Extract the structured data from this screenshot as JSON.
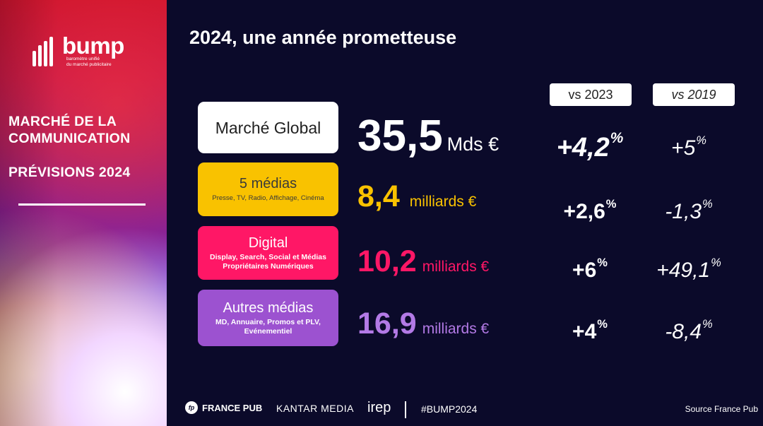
{
  "logo": {
    "word": "bump",
    "subtitle_line1": "baromètre unifié",
    "subtitle_line2": "du marché publicitaire",
    "icon": "bump-bars-icon"
  },
  "sidebar": {
    "title_line1": "MARCHÉ DE LA",
    "title_line2": "COMMUNICATION",
    "subtitle": "PRÉVISIONS 2024"
  },
  "title": "2024, une année prometteuse",
  "columns": {
    "vs2023": "vs 2023",
    "vs2019": "vs 2019"
  },
  "rows": {
    "global": {
      "name": "Marché Global",
      "value": "35,5",
      "unit": "Mds €",
      "vs2023": "+4,2",
      "vs2019": "+5"
    },
    "five": {
      "name": "5 médias",
      "desc": "Presse, TV, Radio, Affichage, Cinéma",
      "value": "8,4",
      "unit": "milliards €",
      "vs2023": "+2,6",
      "vs2019": "-1,3"
    },
    "digital": {
      "name": "Digital",
      "desc1": "Display, Search, Social et Médias",
      "desc2": "Propriétaires Numériques",
      "value": "10,2",
      "unit": "milliards €",
      "vs2023": "+6",
      "vs2019": "+49,1"
    },
    "autres": {
      "name": "Autres médias",
      "desc1": "MD, Annuaire, Promos et PLV,",
      "desc2": "Evénementiel",
      "value": "16,9",
      "unit": "milliards €",
      "vs2023": "+4",
      "vs2019": "-8,4"
    }
  },
  "pct_sign": "%",
  "footer": {
    "francepub": "FRANCE PUB",
    "francepub_icon": "fp",
    "kantar": "KANTAR MEDIA",
    "irep": "irep",
    "hashtag": "#BUMP2024",
    "source": "Source France Pub"
  },
  "colors": {
    "background": "#0b0a2a",
    "yellow": "#f9c200",
    "pink": "#ff1766",
    "purple": "#9c52d0"
  }
}
